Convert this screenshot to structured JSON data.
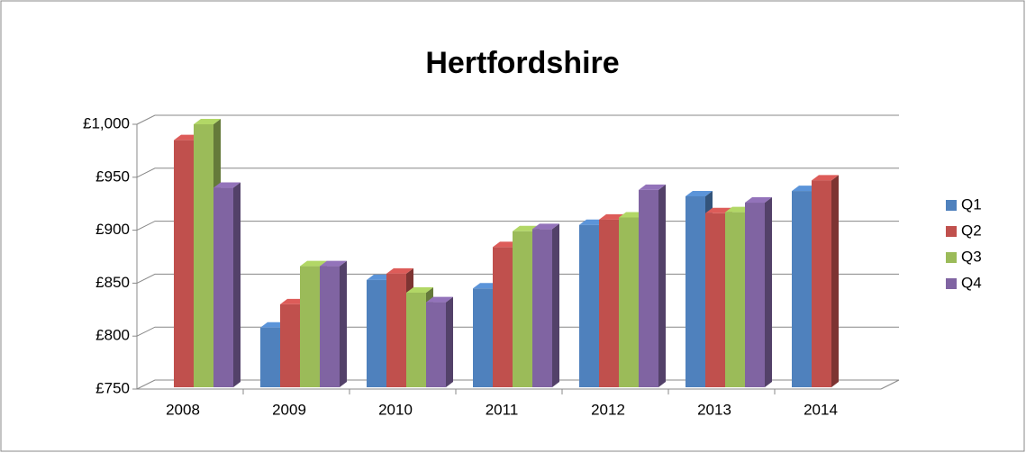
{
  "chart_data": {
    "type": "bar3d",
    "title": "Hertfordshire",
    "categories": [
      "2008",
      "2009",
      "2010",
      "2011",
      "2012",
      "2013",
      "2014"
    ],
    "series": [
      {
        "name": "Q1",
        "color": "#4f81bd",
        "values": [
          null,
          808,
          853,
          845,
          905,
          932,
          937
        ]
      },
      {
        "name": "Q2",
        "color": "#c0504d",
        "values": [
          985,
          830,
          859,
          884,
          910,
          916,
          947
        ]
      },
      {
        "name": "Q3",
        "color": "#9bbb59",
        "values": [
          1000,
          866,
          841,
          899,
          912,
          917,
          null
        ]
      },
      {
        "name": "Q4",
        "color": "#8064a2",
        "values": [
          940,
          866,
          832,
          901,
          938,
          926,
          null
        ]
      }
    ],
    "ylim": [
      750,
      1000
    ],
    "yticks": [
      {
        "value": 750,
        "label": "£750"
      },
      {
        "value": 800,
        "label": "£800"
      },
      {
        "value": 850,
        "label": "£850"
      },
      {
        "value": 900,
        "label": "£900"
      },
      {
        "value": 950,
        "label": "£950"
      },
      {
        "value": 1000,
        "label": "£1,000"
      }
    ],
    "grid": true,
    "legend": "right"
  }
}
